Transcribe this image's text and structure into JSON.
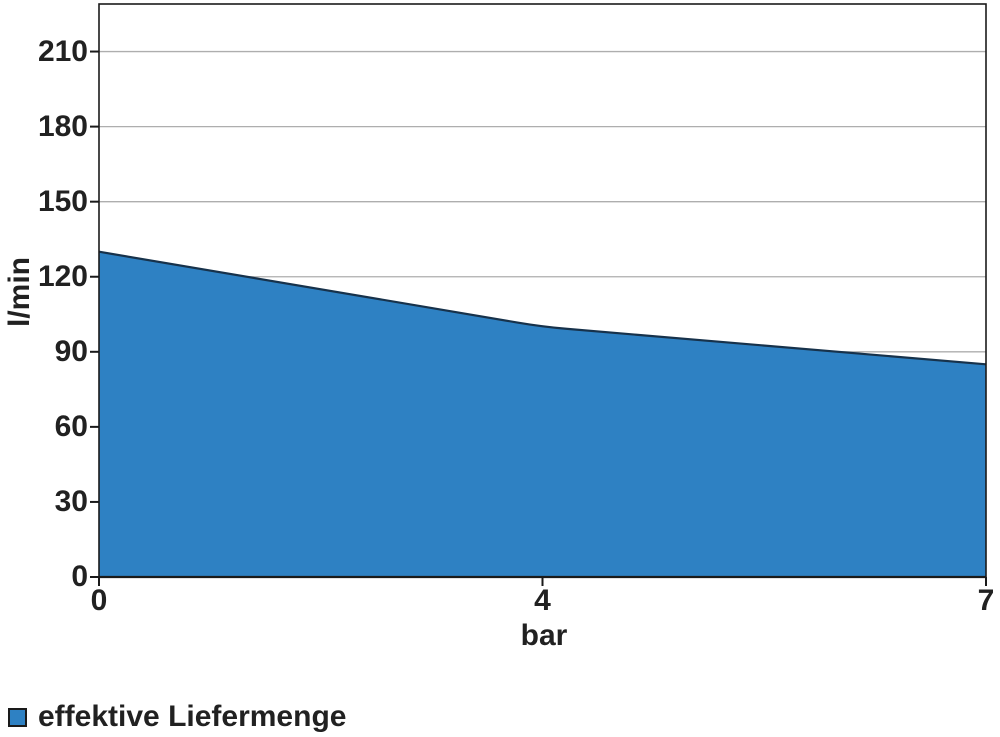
{
  "chart_data": {
    "type": "area",
    "title": "",
    "xlabel": "bar",
    "ylabel": "l/min",
    "categories": [
      0,
      4,
      7
    ],
    "xtick_labels": [
      "0",
      "4",
      "7"
    ],
    "series": [
      {
        "name": "effektive Liefermenge",
        "values": [
          130,
          100,
          85
        ]
      }
    ],
    "yticks": [
      0,
      30,
      60,
      90,
      120,
      150,
      180,
      210
    ],
    "ylim": [
      0,
      229
    ],
    "grid": "horizontal",
    "legend_position": "bottom-left",
    "legend": "effektive Liefermenge",
    "colors": {
      "fill": "#2e81c3",
      "line": "#17324b",
      "grid": "#aeaeae",
      "frame": "#1a1a1a",
      "text": "#212121"
    }
  }
}
